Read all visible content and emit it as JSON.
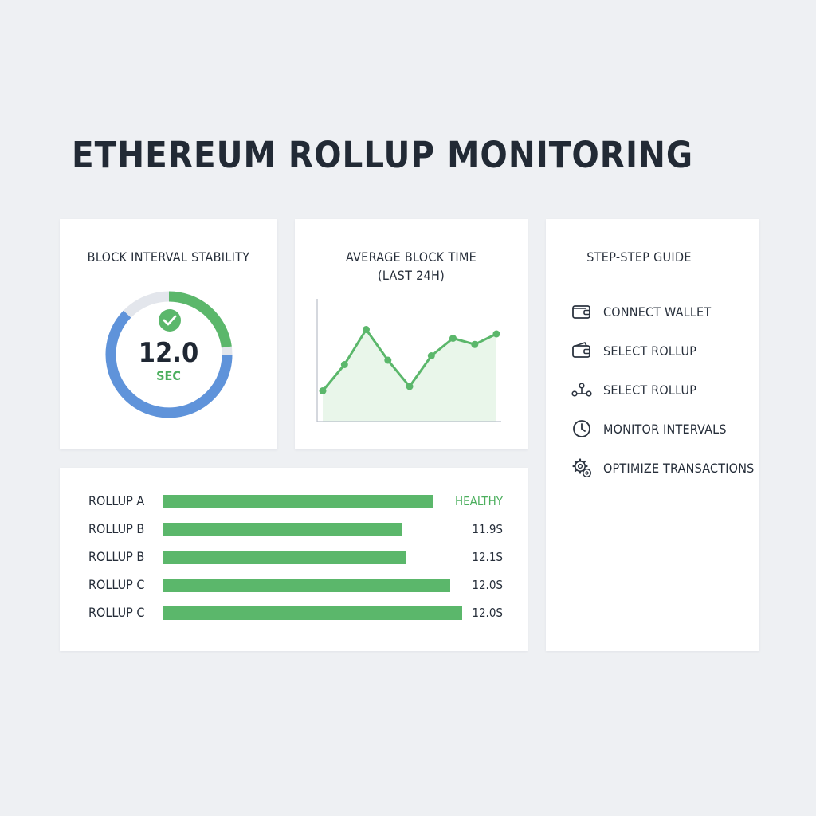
{
  "page": {
    "title": "ETHEREUM ROLLUP MONITORING"
  },
  "stability": {
    "title": "BLOCK INTERVAL STABILITY",
    "value": "12.0",
    "unit": "SEC",
    "status_icon": "check-circle-icon",
    "colors": {
      "green": "#5bb76b",
      "blue": "#5f93da",
      "track": "#e3e6ec"
    }
  },
  "average": {
    "title_line1": "AVERAGE BLOCK TIME",
    "title_line2": "(LAST 24H)"
  },
  "chart_data": {
    "type": "area",
    "title": "AVERAGE BLOCK TIME (LAST 24H)",
    "x": [
      1,
      2,
      3,
      4,
      5,
      6,
      7,
      8,
      9
    ],
    "values": [
      11.85,
      12.15,
      12.55,
      12.2,
      11.9,
      12.25,
      12.45,
      12.38,
      12.5
    ],
    "ylim": [
      11.5,
      12.9
    ],
    "grid": false,
    "colors": {
      "line": "#5bb76b",
      "fill": "#e9f6ea"
    }
  },
  "guide": {
    "title": "STEP-STEP GUIDE",
    "items": [
      {
        "label": "CONNECT WALLET",
        "icon": "wallet-icon"
      },
      {
        "label": "SELECT ROLLUP",
        "icon": "wallet-icon"
      },
      {
        "label": "SELECT ROLLUP",
        "icon": "network-nodes-icon"
      },
      {
        "label": "MONITOR INTERVALS",
        "icon": "clock-icon"
      },
      {
        "label": "OPTIMIZE TRANSACTIONS",
        "icon": "gear-icon"
      }
    ]
  },
  "rollups": {
    "rows": [
      {
        "name": "ROLLUP A",
        "status": "HEALTHY",
        "level": 0.9,
        "status_color": "#4caf5e"
      },
      {
        "name": "ROLLUP B",
        "status": "11.9S",
        "level": 0.8,
        "status_color": "#262e3a"
      },
      {
        "name": "ROLLUP B",
        "status": "12.1S",
        "level": 0.81,
        "status_color": "#262e3a"
      },
      {
        "name": "ROLLUP C",
        "status": "12.0S",
        "level": 0.96,
        "status_color": "#262e3a"
      },
      {
        "name": "ROLLUP C",
        "status": "12.0S",
        "level": 1.0,
        "status_color": "#262e3a"
      }
    ]
  }
}
